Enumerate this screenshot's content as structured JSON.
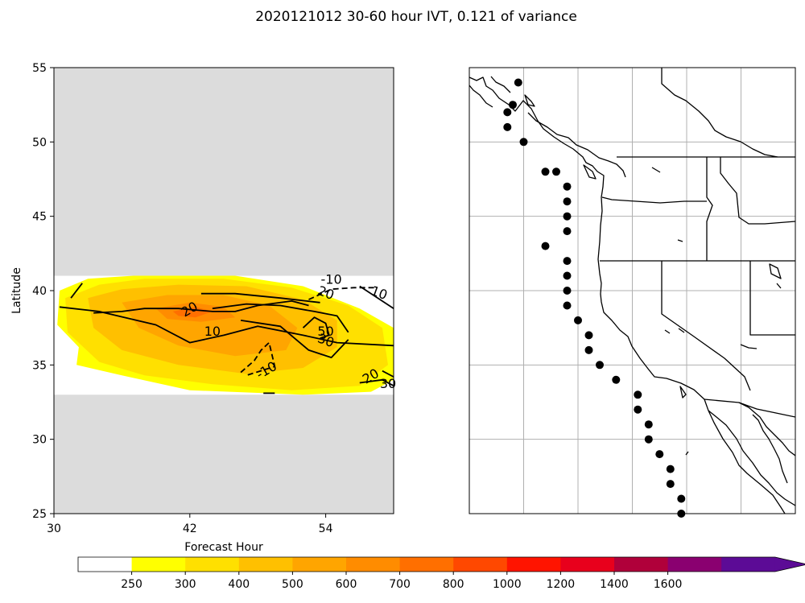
{
  "title": "2020121012 30-60 hour IVT, 0.121 of variance",
  "chart_data": [
    {
      "type": "contour",
      "xlabel": "Forecast Hour",
      "ylabel": "Latitude",
      "xlim": [
        30,
        60
      ],
      "ylim": [
        25,
        55
      ],
      "xticks": [
        "30",
        "42",
        "54"
      ],
      "yticks": [
        "25",
        "30",
        "35",
        "40",
        "45",
        "50",
        "55"
      ],
      "missing_color": "#dcdcdc",
      "data_lat_range": [
        33,
        41
      ],
      "filled_levels": [
        {
          "min": 250,
          "color": "#ffff00",
          "polygon": [
            [
              30.5,
              40
            ],
            [
              33,
              40.8
            ],
            [
              37,
              41
            ],
            [
              46,
              41
            ],
            [
              52,
              40.3
            ],
            [
              57,
              38.8
            ],
            [
              60,
              37.5
            ],
            [
              60,
              34
            ],
            [
              58,
              33.2
            ],
            [
              52,
              33
            ],
            [
              42,
              33.3
            ],
            [
              36,
              34.3
            ],
            [
              32,
              35
            ],
            [
              32.2,
              36.2
            ],
            [
              30.3,
              37.7
            ]
          ]
        },
        {
          "min": 300,
          "color": "#ffe000",
          "polygon": [
            [
              31,
              39.5
            ],
            [
              34,
              40.4
            ],
            [
              38,
              40.8
            ],
            [
              45,
              40.8
            ],
            [
              51,
              40.2
            ],
            [
              56,
              39
            ],
            [
              59,
              37.5
            ],
            [
              59.5,
              35
            ],
            [
              57,
              33.6
            ],
            [
              51,
              33.3
            ],
            [
              44,
              33.7
            ],
            [
              38,
              34.3
            ],
            [
              34,
              35.2
            ],
            [
              31.2,
              37.2
            ]
          ]
        },
        {
          "min": 400,
          "color": "#ffc000",
          "polygon": [
            [
              33,
              39.5
            ],
            [
              36,
              40.1
            ],
            [
              41,
              40.4
            ],
            [
              47,
              40.3
            ],
            [
              52,
              39.4
            ],
            [
              55,
              38
            ],
            [
              55,
              36.2
            ],
            [
              52,
              34.8
            ],
            [
              47,
              34.4
            ],
            [
              41,
              35
            ],
            [
              36,
              36
            ],
            [
              33.5,
              37.5
            ]
          ]
        },
        {
          "min": 500,
          "color": "#ffa500",
          "polygon": [
            [
              36,
              39.2
            ],
            [
              40,
              39.7
            ],
            [
              45,
              39.7
            ],
            [
              49,
              39
            ],
            [
              51.5,
              37.5
            ],
            [
              50.5,
              36
            ],
            [
              46,
              35.6
            ],
            [
              41,
              36.3
            ],
            [
              37.5,
              37.5
            ]
          ]
        },
        {
          "min": 600,
          "color": "#ff8c00",
          "polygon": [
            [
              39,
              38.8
            ],
            [
              42,
              39.2
            ],
            [
              45,
              38.9
            ],
            [
              46,
              38.2
            ],
            [
              43,
              37.9
            ],
            [
              40,
              38.1
            ]
          ]
        },
        {
          "min": 700,
          "color": "#ff6f00",
          "polygon": [
            [
              40.5,
              38.6
            ],
            [
              42.5,
              38.9
            ],
            [
              44,
              38.6
            ],
            [
              42.5,
              38.2
            ],
            [
              41,
              38.3
            ]
          ]
        }
      ],
      "contours": [
        {
          "label": "10",
          "style": "solid",
          "points": [
            [
              31.5,
              39.5
            ],
            [
              32.5,
              40.5
            ]
          ],
          "label_pos": null
        },
        {
          "label": "20",
          "style": "solid",
          "points": [
            [
              33.5,
              38.5
            ],
            [
              36,
              38.6
            ],
            [
              38,
              38.8
            ],
            [
              41,
              38.8
            ],
            [
              44,
              38.6
            ],
            [
              46,
              38.6
            ],
            [
              48,
              39
            ],
            [
              51,
              39.3
            ],
            [
              52.5,
              39
            ]
          ],
          "label_pos": [
            42,
            38.7
          ]
        },
        {
          "label": "10",
          "style": "solid",
          "points": [
            [
              30.5,
              38.9
            ],
            [
              34,
              38.6
            ],
            [
              39,
              37.7
            ],
            [
              42,
              36.5
            ],
            [
              45,
              37
            ],
            [
              48,
              37.6
            ],
            [
              52,
              37
            ],
            [
              55,
              36.5
            ],
            [
              60,
              36.3
            ]
          ],
          "label_pos": [
            44,
            37.2
          ]
        },
        {
          "label": "20",
          "style": "solid",
          "points": [
            [
              43,
              39.8
            ],
            [
              46,
              39.8
            ],
            [
              50,
              39.5
            ],
            [
              53.5,
              39.2
            ]
          ],
          "label_pos": [
            54,
            39.8
          ]
        },
        {
          "label": "30",
          "style": "solid",
          "points": [
            [
              44,
              38.8
            ],
            [
              47,
              39.1
            ],
            [
              50,
              39
            ],
            [
              53,
              38.6
            ],
            [
              55,
              38.3
            ],
            [
              56,
              37.2
            ]
          ],
          "label_pos": null
        },
        {
          "label": "50",
          "style": "solid",
          "points": [
            [
              52,
              37.5
            ],
            [
              53,
              38.2
            ],
            [
              54,
              37.8
            ],
            [
              54.3,
              37
            ],
            [
              53.5,
              36.8
            ]
          ],
          "label_pos": [
            54,
            37.2
          ]
        },
        {
          "label": "30",
          "style": "solid",
          "points": [
            [
              46.5,
              38
            ],
            [
              50,
              37.6
            ],
            [
              52.5,
              36
            ],
            [
              54.5,
              35.5
            ],
            [
              56,
              36.7
            ]
          ],
          "label_pos": [
            54,
            36.6
          ]
        },
        {
          "label": "-10",
          "style": "dashed",
          "points": [
            [
              46.5,
              34.5
            ],
            [
              47.7,
              35.3
            ],
            [
              48.3,
              36
            ],
            [
              49,
              36.5
            ],
            [
              49.5,
              34.9
            ],
            [
              47,
              34.3
            ]
          ],
          "label_pos": [
            48.8,
            34.6
          ]
        },
        {
          "label": "-10",
          "style": "dashed",
          "points": [
            [
              52.5,
              39.4
            ],
            [
              54.5,
              40.1
            ],
            [
              56.5,
              40.2
            ],
            [
              58.3,
              40.2
            ]
          ],
          "label_pos": [
            54.5,
            40.7
          ]
        },
        {
          "label": "10",
          "style": "solid",
          "points": [
            [
              57,
              40.3
            ],
            [
              58,
              39.8
            ],
            [
              60,
              38.8
            ]
          ],
          "label_pos": [
            58.7,
            39.8
          ]
        },
        {
          "label": "20",
          "style": "solid",
          "points": [
            [
              59,
              34.6
            ],
            [
              60,
              34.2
            ]
          ],
          "label_pos": [
            58,
            34.2
          ]
        },
        {
          "label": "30",
          "style": "solid",
          "points": [
            [
              57,
              33.8
            ],
            [
              59,
              34
            ],
            [
              60,
              33.6
            ]
          ],
          "label_pos": [
            59.5,
            33.7
          ]
        },
        {
          "label": "",
          "style": "solid",
          "points": [
            [
              48.5,
              33.1
            ],
            [
              49.5,
              33.1
            ]
          ],
          "label_pos": null
        }
      ]
    },
    {
      "type": "map",
      "region": "US West Coast",
      "projection": "PlateCarree",
      "lon_range": [
        -135,
        -105
      ],
      "lat_range": [
        25,
        55
      ],
      "grid": true,
      "grid_lons": [
        -130,
        -125,
        -120,
        -115,
        -110
      ],
      "grid_lats": [
        30,
        35,
        40,
        45,
        50
      ],
      "points": [
        [
          -130.5,
          54
        ],
        [
          -131,
          52.5
        ],
        [
          -131.5,
          52
        ],
        [
          -131.5,
          51
        ],
        [
          -130,
          50
        ],
        [
          -128,
          48
        ],
        [
          -127,
          48
        ],
        [
          -126,
          47
        ],
        [
          -126,
          46
        ],
        [
          -126,
          45
        ],
        [
          -126,
          44
        ],
        [
          -128,
          43
        ],
        [
          -126,
          42
        ],
        [
          -126,
          41
        ],
        [
          -126,
          40
        ],
        [
          -126,
          39
        ],
        [
          -125,
          38
        ],
        [
          -124,
          37
        ],
        [
          -124,
          36
        ],
        [
          -123,
          35
        ],
        [
          -121.5,
          34
        ],
        [
          -119.5,
          33
        ],
        [
          -119.5,
          32
        ],
        [
          -118.5,
          31
        ],
        [
          -118.5,
          30
        ],
        [
          -117.5,
          29
        ],
        [
          -116.5,
          28
        ],
        [
          -116.5,
          27
        ],
        [
          -115.5,
          26
        ],
        [
          -115.5,
          25
        ]
      ]
    }
  ],
  "colorbar": {
    "colors": [
      "#ffffff",
      "#ffff00",
      "#ffe000",
      "#ffc000",
      "#ffa500",
      "#ff8c00",
      "#ff6f00",
      "#ff4800",
      "#ff1400",
      "#e8001c",
      "#b0003a",
      "#8a0070",
      "#5c0b96"
    ],
    "ticks": [
      "250",
      "300",
      "400",
      "500",
      "600",
      "700",
      "800",
      "1000",
      "1200",
      "1400",
      "1600"
    ],
    "extend": "max",
    "extend_color": "#5c0b96"
  }
}
